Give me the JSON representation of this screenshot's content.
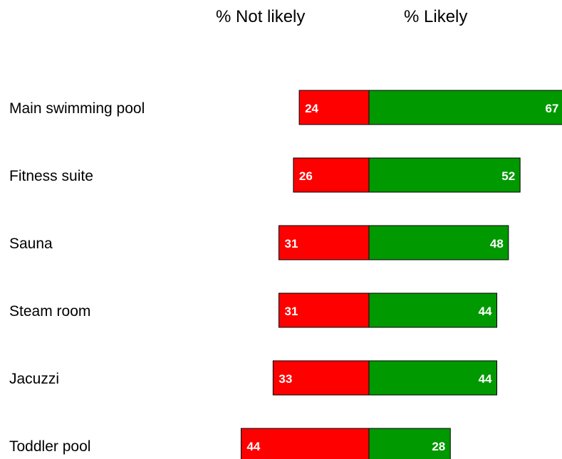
{
  "chart_data": {
    "type": "bar",
    "orientation": "horizontal-diverging",
    "column_headers": {
      "left": "% Not likely",
      "right": "% Likely"
    },
    "categories": [
      "Main swimming pool",
      "Fitness suite",
      "Sauna",
      "Steam room",
      "Jacuzzi",
      "Toddler pool"
    ],
    "series": [
      {
        "name": "% Not likely",
        "values": [
          24,
          26,
          31,
          31,
          33,
          44
        ],
        "color": "#ff0000"
      },
      {
        "name": "% Likely",
        "values": [
          67,
          52,
          48,
          44,
          44,
          28
        ],
        "color": "#009900"
      }
    ],
    "data_labels": true,
    "grid": false,
    "legend": "none"
  }
}
